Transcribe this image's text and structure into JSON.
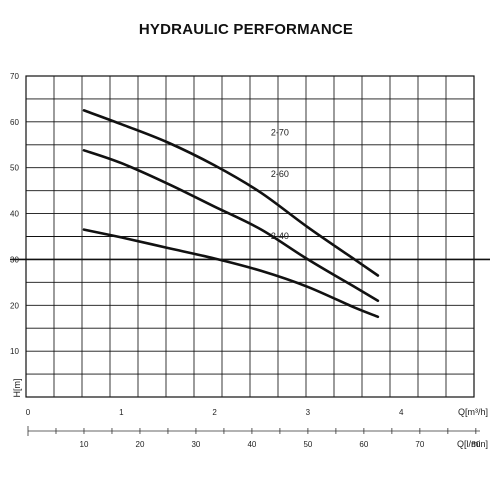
{
  "chart_data": {
    "type": "line",
    "title": "HYDRAULIC PERFORMANCE",
    "ylabel": "H[m]",
    "xlabel": "Q[m³/h]",
    "xlabel2": "Q[l/min]",
    "ylim": [
      0,
      70
    ],
    "y_ticks": [
      0,
      10,
      20,
      30,
      40,
      50,
      60,
      70
    ],
    "y_tick_labels": [
      "",
      "10",
      "20",
      "30",
      "40",
      "50",
      "60",
      "70"
    ],
    "x_m3h_lim": [
      0,
      4.8
    ],
    "x_m3h_ticks": [
      0,
      1,
      2,
      3,
      4
    ],
    "x_lmin_ticks": [
      10,
      20,
      30,
      40,
      50,
      60,
      70,
      80
    ],
    "grid": true,
    "series": [
      {
        "name": "2-70",
        "label_at": [
          2.7,
          57
        ],
        "points": [
          [
            0.6,
            62.5
          ],
          [
            1.0,
            59.5
          ],
          [
            1.5,
            55.5
          ],
          [
            2.0,
            50.5
          ],
          [
            2.5,
            44.5
          ],
          [
            3.0,
            37.0
          ],
          [
            3.5,
            30.0
          ],
          [
            3.75,
            26.5
          ]
        ]
      },
      {
        "name": "2-60",
        "label_at": [
          2.7,
          48
        ],
        "points": [
          [
            0.6,
            53.8
          ],
          [
            1.0,
            51.0
          ],
          [
            1.5,
            46.5
          ],
          [
            2.0,
            41.5
          ],
          [
            2.5,
            36.5
          ],
          [
            3.0,
            30.0
          ],
          [
            3.5,
            24.0
          ],
          [
            3.75,
            21.0
          ]
        ]
      },
      {
        "name": "2-40",
        "label_at": [
          2.7,
          34.5
        ],
        "points": [
          [
            0.6,
            36.5
          ],
          [
            1.0,
            34.8
          ],
          [
            1.5,
            32.5
          ],
          [
            2.0,
            30.2
          ],
          [
            2.5,
            27.5
          ],
          [
            3.0,
            24.0
          ],
          [
            3.5,
            19.5
          ],
          [
            3.75,
            17.5
          ]
        ]
      }
    ]
  }
}
